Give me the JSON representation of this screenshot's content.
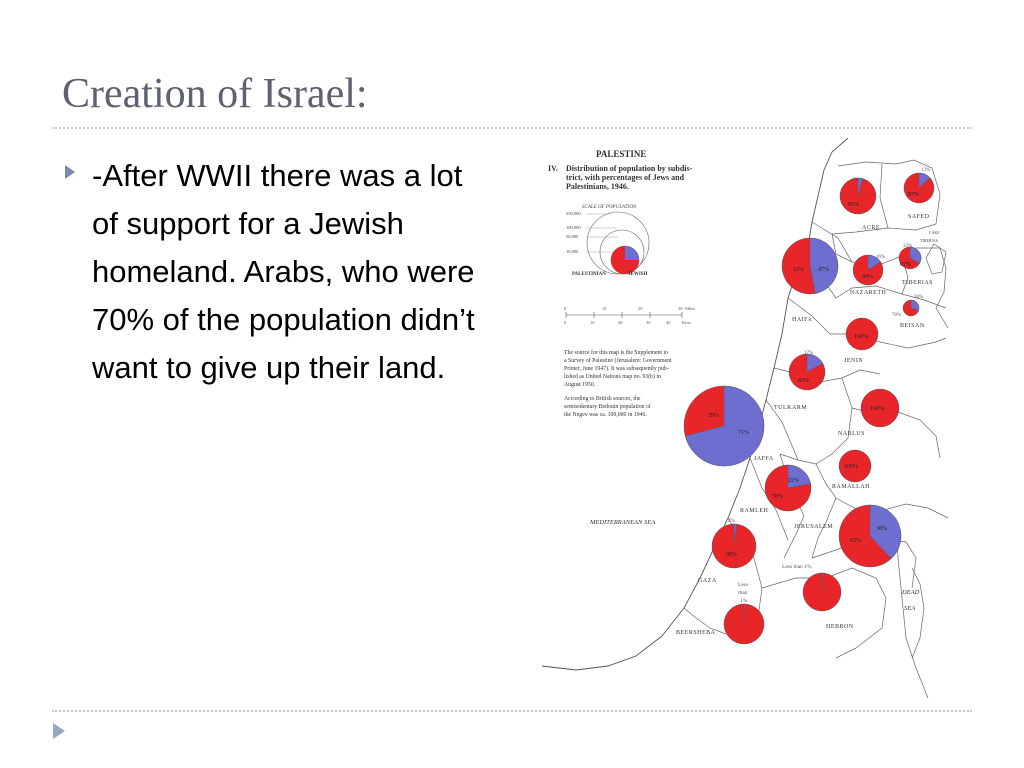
{
  "slide": {
    "title": "Creation of Israel:",
    "bullet_text": "-After WWII there was a lot of support for a Jewish homeland.  Arabs, who were 70% of the population didn’t want to give up their land.",
    "colors": {
      "title": "#5d6170",
      "accent": "#7a8aa8",
      "divider": "#c4cbd6"
    }
  },
  "map": {
    "heading": "PALESTINE",
    "numeral": "IV.",
    "caption_lines": [
      "Distribution of population by subdis-",
      "trict, with percentages of Jews and",
      "Palestinians, 1946."
    ],
    "scale_title": "SCALE OF POPULATION",
    "scale_values": [
      "250,000",
      "100,000",
      "50,000",
      "10,000"
    ],
    "legend": {
      "palestinian": "PALESTINIAN",
      "jewish": "JEWISH",
      "palestinian_color": "#e8262a",
      "jewish_color": "#6d6ecf"
    },
    "distance": {
      "miles_ticks": [
        "0",
        "10",
        "20",
        "30"
      ],
      "miles_label": "Miles",
      "km_ticks": [
        "0",
        "10",
        "20",
        "30",
        "40"
      ],
      "km_label": "Kms"
    },
    "source_lines": [
      "The source for this map is the Supplement to",
      "a Survey of Palestine (Jerusalem: Government",
      "Printer, June 1947). It was subsequently pub-",
      "lished as United Nations map no. 93(b) in",
      "August 1950."
    ],
    "bedouin_lines": [
      "According to British sources, the",
      "semisedentary Bedouin population of",
      "the Negev was ca. 100,000 in 1946."
    ],
    "sea_label": "MEDITERRANEAN SEA",
    "dead_sea_label": [
      "DEAD",
      "SEA"
    ],
    "lake_label": [
      "LAKE",
      "TIBERIAS"
    ],
    "districts": [
      {
        "name": "SAFED",
        "jewish_pct": "13%",
        "pal_pct": "87%"
      },
      {
        "name": "ACRE",
        "jewish_pct": "4%",
        "pal_pct": "96%"
      },
      {
        "name": "TIBERIAS",
        "jewish_pct": "33%",
        "pal_pct": "67%"
      },
      {
        "name": "HAIFA",
        "jewish_pct": "47%",
        "pal_pct": "53%"
      },
      {
        "name": "NAZARETH",
        "jewish_pct": "16%",
        "pal_pct": "84%"
      },
      {
        "name": "BEISAN",
        "jewish_pct": "30%",
        "pal_pct": "70%"
      },
      {
        "name": "JENIN",
        "jewish_pct": "",
        "pal_pct": "100%"
      },
      {
        "name": "TULKARM",
        "jewish_pct": "17%",
        "pal_pct": "83%"
      },
      {
        "name": "JAFFA",
        "jewish_pct": "71%",
        "pal_pct": "29%"
      },
      {
        "name": "NABLUS",
        "jewish_pct": "",
        "pal_pct": "100%"
      },
      {
        "name": "RAMALLAH",
        "jewish_pct": "",
        "pal_pct": "100%"
      },
      {
        "name": "RAMLEH",
        "jewish_pct": "22%",
        "pal_pct": "78%"
      },
      {
        "name": "JERUSALEM",
        "jewish_pct": "38%",
        "pal_pct": "62%"
      },
      {
        "name": "GAZA",
        "jewish_pct": "2%",
        "pal_pct": "98%"
      },
      {
        "name": "HEBRON",
        "jewish_pct": "Less than 1%",
        "pal_pct": ""
      },
      {
        "name": "BEERSHEBA",
        "jewish_pct": "Less than 1%",
        "pal_pct": ""
      }
    ]
  }
}
